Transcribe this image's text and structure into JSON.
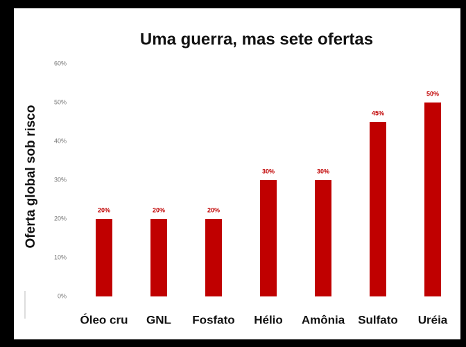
{
  "chart_data": {
    "type": "bar",
    "title": "Uma guerra, mas sete ofertas",
    "y_label": "Oferta global sob risco",
    "categories": [
      "Óleo cru",
      "GNL",
      "Fosfato",
      "Hélio",
      "Amônia",
      "Sulfato",
      "Uréia"
    ],
    "values": [
      20,
      20,
      20,
      30,
      30,
      45,
      50
    ],
    "value_labels": [
      "20%",
      "20%",
      "20%",
      "30%",
      "30%",
      "45%",
      "50%"
    ],
    "color": "#c00000",
    "ylim": [
      0,
      60
    ],
    "yticks": [
      {
        "value": 0,
        "label": "0%"
      },
      {
        "value": 10,
        "label": "10%"
      },
      {
        "value": 20,
        "label": "20%"
      },
      {
        "value": 30,
        "label": "30%"
      },
      {
        "value": 40,
        "label": "40%"
      },
      {
        "value": 50,
        "label": "50%"
      },
      {
        "value": 60,
        "label": "60%"
      }
    ],
    "grid": false
  }
}
